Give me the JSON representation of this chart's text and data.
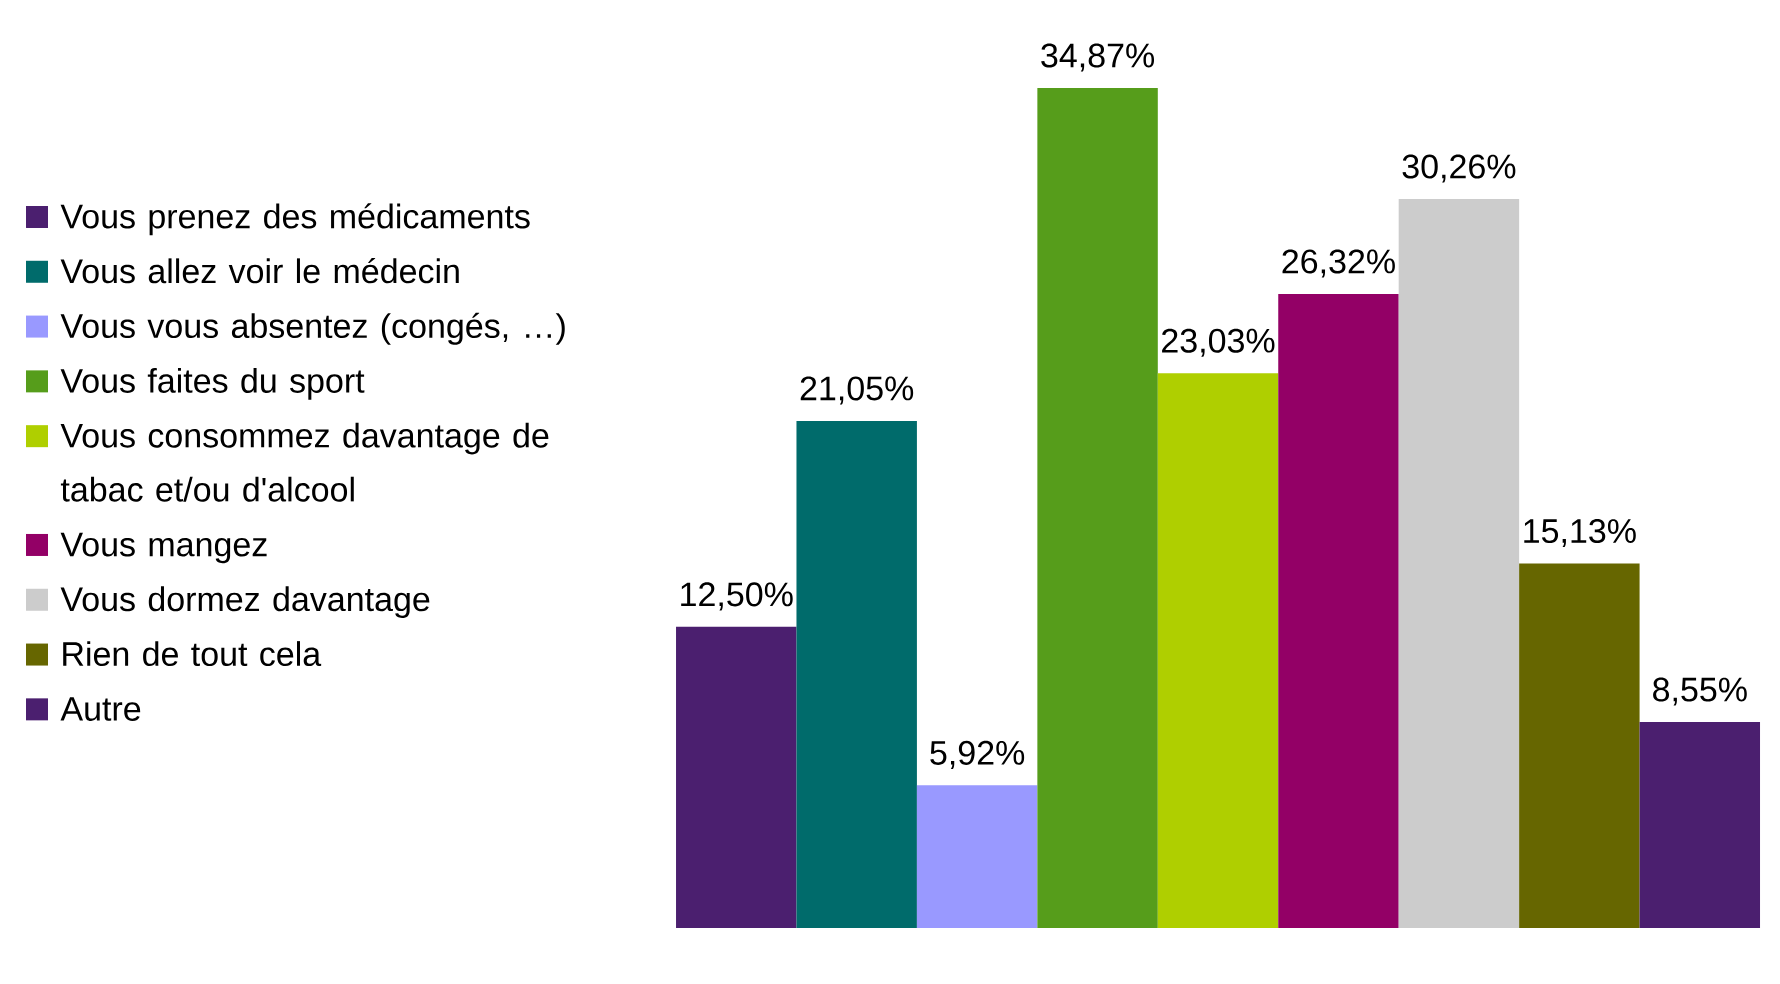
{
  "chart_data": {
    "type": "bar",
    "categories": [
      null
    ],
    "tick_labels": false,
    "legend": "left",
    "series": [
      {
        "name": "Vous prenez des médicaments",
        "color": "#4b1f6f",
        "values": [
          12.5
        ],
        "value_labels": [
          "12,50%"
        ]
      },
      {
        "name": "Vous allez voir le médecin",
        "color": "#006b6b",
        "values": [
          21.05
        ],
        "value_labels": [
          "21,05%"
        ]
      },
      {
        "name": "Vous vous absentez (congés, …)",
        "color": "#9999ff",
        "values": [
          5.92
        ],
        "value_labels": [
          "5,92%"
        ]
      },
      {
        "name": "Vous faites du sport",
        "color": "#569d1b",
        "values": [
          34.87
        ],
        "value_labels": [
          "34,87%"
        ]
      },
      {
        "name": "Vous consommez davantage de tabac et/ou d'alcool",
        "color": "#afcf00",
        "values": [
          23.03
        ],
        "value_labels": [
          "23,03%"
        ]
      },
      {
        "name": "Vous mangez",
        "color": "#930066",
        "values": [
          26.32
        ],
        "value_labels": [
          "26,32%"
        ]
      },
      {
        "name": "Vous dormez davantage",
        "color": "#cccccc",
        "values": [
          30.26
        ],
        "value_labels": [
          "30,26%"
        ]
      },
      {
        "name": "Rien de tout cela",
        "color": "#666600",
        "values": [
          15.13
        ],
        "value_labels": [
          "15,13%"
        ]
      },
      {
        "name": "Autre",
        "color": "#4b1f6f",
        "values": [
          8.55
        ],
        "value_labels": [
          "8,55%"
        ]
      }
    ]
  }
}
